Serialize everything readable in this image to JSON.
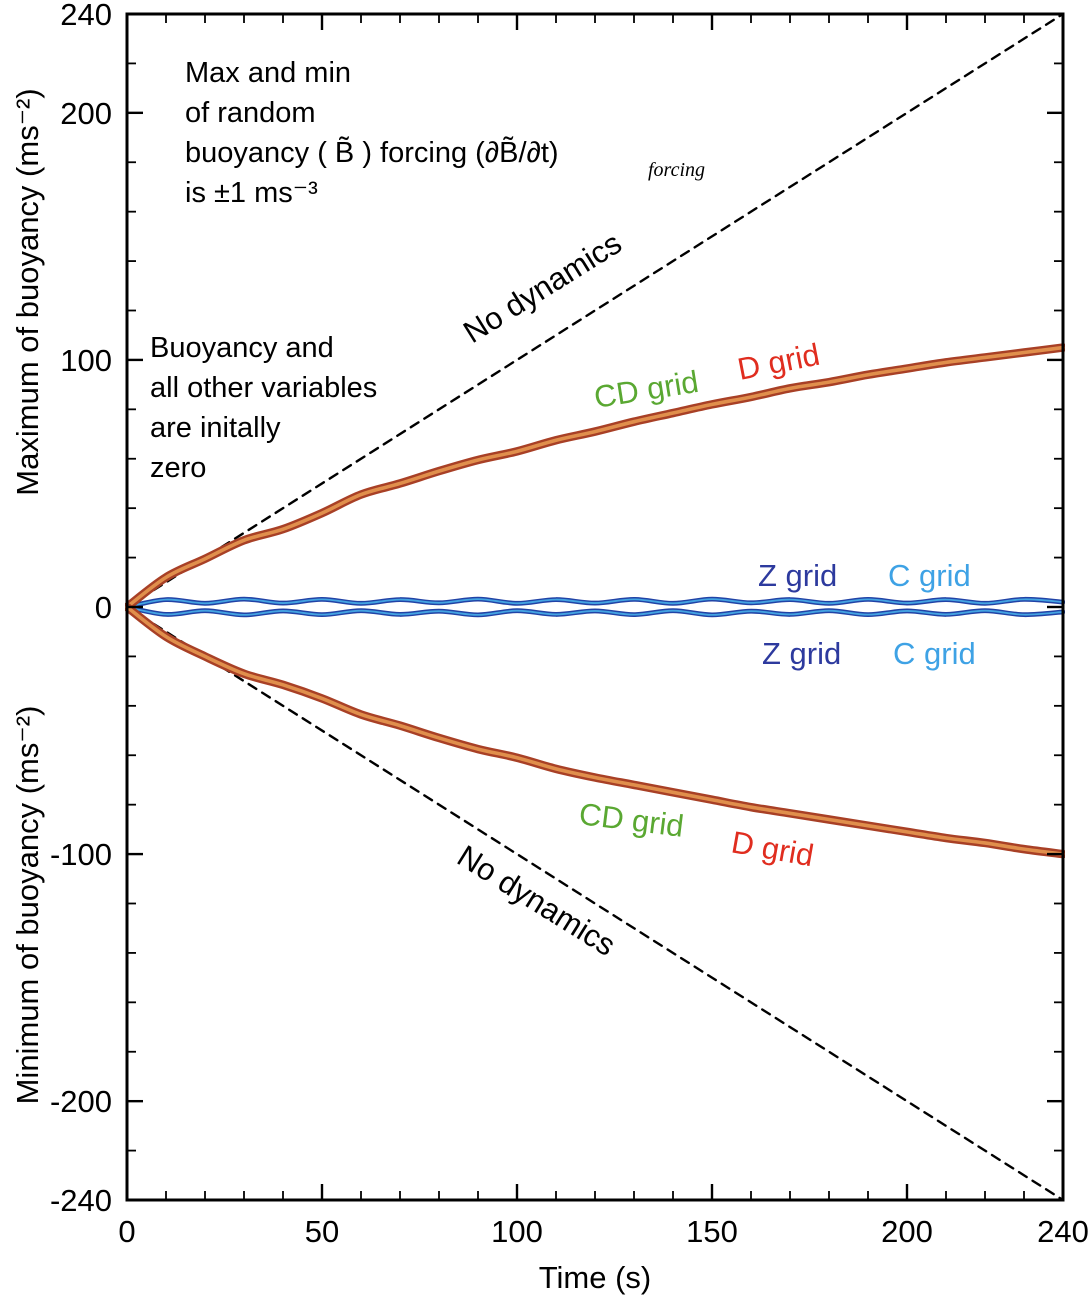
{
  "palette": {
    "black": "#000000",
    "cd_grid_green": "#5aa832",
    "d_grid_red": "#e02d1f",
    "z_grid_navy": "#2d3a9e",
    "c_grid_lightblue": "#3ea2e5",
    "curve_edge_red": "#a84026",
    "curve_core_orange": "#e08f4c",
    "blue_curve_outer": "#2143a6",
    "blue_curve_inner": "#44a4e2"
  },
  "annotations": {
    "forcing_note_line1": "Max and min",
    "forcing_note_line2": "of random",
    "forcing_note_line3": "buoyancy ( B̃ ) forcing (∂B̃/∂t)",
    "forcing_note_sub": "forcing",
    "forcing_note_line4": "is ±1 ms⁻³",
    "initial_note_line1": "Buoyancy and",
    "initial_note_line2": "all other variables",
    "initial_note_line3": "are initally",
    "initial_note_line4": "zero",
    "no_dynamics_top": "No dynamics",
    "no_dynamics_bottom": "No dynamics",
    "cd_grid_top": "CD grid",
    "d_grid_top": "D grid",
    "z_grid_top": "Z grid",
    "c_grid_top": "C grid",
    "z_grid_bottom": "Z grid",
    "c_grid_bottom": "C grid",
    "cd_grid_bottom": "CD grid",
    "d_grid_bottom": "D grid"
  },
  "axes": {
    "x_label": "Time (s)",
    "y_label_top": "Maximum of buoyancy (ms⁻²)",
    "y_label_bottom": "Minimum of buoyancy (ms⁻²)",
    "x_tick_labels": [
      "0",
      "50",
      "100",
      "150",
      "200",
      "240"
    ],
    "y_tick_labels": [
      "240",
      "200",
      "100",
      "0",
      "-100",
      "-200",
      "-240"
    ]
  },
  "chart_data": {
    "type": "line",
    "title": "",
    "xlabel": "Time (s)",
    "ylabel_top": "Maximum of buoyancy (ms⁻²)",
    "ylabel_bottom": "Minimum of buoyancy (ms⁻²)",
    "xlim": [
      0,
      240
    ],
    "ylim": [
      -240,
      240
    ],
    "x_ticks": [
      0,
      50,
      100,
      150,
      200,
      240
    ],
    "y_ticks": [
      240,
      200,
      100,
      0,
      -100,
      -200,
      -240
    ],
    "x_minor_step": 10,
    "y_minor_step": 20,
    "grid": false,
    "legend": "inline-labels",
    "t": [
      0,
      10,
      20,
      30,
      40,
      50,
      60,
      70,
      80,
      90,
      100,
      110,
      120,
      130,
      140,
      150,
      160,
      170,
      180,
      190,
      200,
      210,
      220,
      230,
      240
    ],
    "series": [
      {
        "name": "no-dynamics-max-line",
        "label": "No dynamics",
        "x": [
          0,
          240
        ],
        "values": [
          0,
          240
        ],
        "stroke": "#000000",
        "width": 2.4,
        "dash": "9 7"
      },
      {
        "name": "no-dynamics-min-line",
        "label": "No dynamics",
        "x": [
          0,
          240
        ],
        "values": [
          0,
          -240
        ],
        "stroke": "#000000",
        "width": 2.4,
        "dash": "9 7"
      },
      {
        "name": "z-c-grid-max-line",
        "label": "Z grid / C grid maximum",
        "values": [
          0,
          3,
          1.5,
          3.2,
          1.6,
          3.1,
          1.5,
          3,
          1.7,
          3.2,
          1.5,
          3,
          1.6,
          3.1,
          1.5,
          3.2,
          1.7,
          3,
          1.5,
          3.1,
          1.6,
          3,
          1.5,
          3.1,
          2
        ],
        "stroke": "#2143a6",
        "width": 4.8,
        "inner": "#44a4e2",
        "inner_width": 1.8
      },
      {
        "name": "z-c-grid-min-line",
        "label": "Z grid / C grid minimum",
        "values": [
          0,
          -3,
          -1.5,
          -3.2,
          -1.6,
          -3.1,
          -1.5,
          -3,
          -1.7,
          -3.2,
          -1.5,
          -3,
          -1.6,
          -3.1,
          -1.5,
          -3.2,
          -1.7,
          -3,
          -1.5,
          -3.1,
          -1.6,
          -3,
          -1.5,
          -3.1,
          -2
        ],
        "stroke": "#2143a6",
        "width": 4.8,
        "inner": "#44a4e2",
        "inner_width": 1.8
      },
      {
        "name": "d-cd-grid-max-line",
        "label": "D grid / CD grid maximum",
        "values": [
          0,
          12,
          19.5,
          27,
          31.5,
          38,
          45.5,
          50,
          55,
          59.5,
          63,
          67.5,
          71,
          75,
          78.5,
          82,
          85,
          88.5,
          91,
          94,
          96.5,
          99,
          101,
          103,
          105
        ],
        "stroke": "#a84026",
        "width": 8.5,
        "inner": "#e08f4c",
        "inner_width": 3.6
      },
      {
        "name": "d-cd-grid-min-line",
        "label": "D grid / CD grid minimum",
        "values": [
          0,
          -12,
          -20,
          -27,
          -31.5,
          -37,
          -43.5,
          -48,
          -53,
          -57.5,
          -61,
          -65.5,
          -69,
          -72,
          -75,
          -78,
          -81,
          -83.5,
          -86,
          -88.5,
          -91,
          -93.5,
          -95.5,
          -98,
          -100
        ],
        "stroke": "#a84026",
        "width": 8.5,
        "inner": "#e08f4c",
        "inner_width": 3.6
      }
    ]
  }
}
